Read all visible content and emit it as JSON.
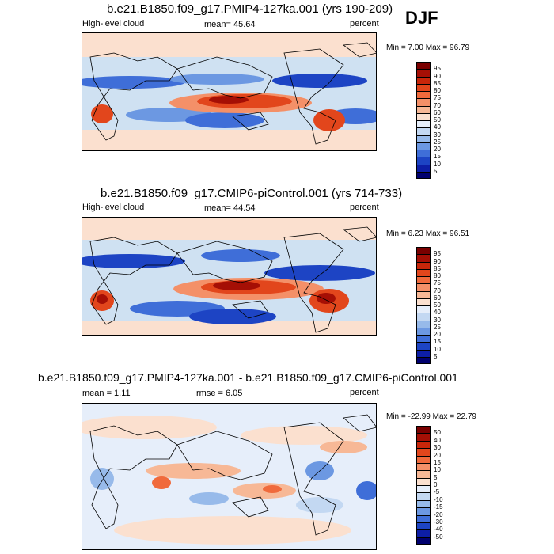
{
  "season": "DJF",
  "panels": [
    {
      "title": "b.e21.B1850.f09_g17.PMIP4-127ka.001 (yrs 190-209)",
      "left_label": "High-level cloud",
      "center_label": "mean=  45.64",
      "right_label": "percent",
      "minmax": "Min =   7.00 Max =  96.79"
    },
    {
      "title": "b.e21.B1850.f09_g17.CMIP6-piControl.001 (yrs 714-733)",
      "left_label": "High-level cloud",
      "center_label": "mean=  44.54",
      "right_label": "percent",
      "minmax": "Min =   6.23 Max =  96.51"
    },
    {
      "title": "b.e21.B1850.f09_g17.PMIP4-127ka.001 - b.e21.B1850.f09_g17.CMIP6-piControl.001",
      "left_label": "mean =   1.11",
      "center_label": "rmse =   6.05",
      "right_label": "percent",
      "minmax": "Min = -22.99 Max =  22.79"
    }
  ],
  "chart_data": [
    {
      "type": "heatmap",
      "title": "b.e21.B1850.f09_g17.PMIP4-127ka.001 (yrs 190-209)",
      "variable": "High-level cloud",
      "units": "percent",
      "mean": 45.64,
      "min": 7.0,
      "max": 96.79,
      "colorbar_levels": [
        5,
        10,
        15,
        20,
        25,
        30,
        40,
        50,
        60,
        70,
        75,
        80,
        85,
        90,
        95
      ]
    },
    {
      "type": "heatmap",
      "title": "b.e21.B1850.f09_g17.CMIP6-piControl.001 (yrs 714-733)",
      "variable": "High-level cloud",
      "units": "percent",
      "mean": 44.54,
      "min": 6.23,
      "max": 96.51,
      "colorbar_levels": [
        5,
        10,
        15,
        20,
        25,
        30,
        40,
        50,
        60,
        70,
        75,
        80,
        85,
        90,
        95
      ]
    },
    {
      "type": "heatmap",
      "title": "b.e21.B1850.f09_g17.PMIP4-127ka.001 - b.e21.B1850.f09_g17.CMIP6-piControl.001",
      "units": "percent",
      "mean": 1.11,
      "rmse": 6.05,
      "min": -22.99,
      "max": 22.79,
      "colorbar_levels": [
        -50,
        -40,
        -30,
        -20,
        -15,
        -10,
        -5,
        0,
        5,
        10,
        15,
        20,
        30,
        40,
        50
      ]
    }
  ],
  "colorbars": {
    "abs": {
      "labels": [
        "95",
        "90",
        "85",
        "80",
        "75",
        "70",
        "60",
        "50",
        "40",
        "30",
        "25",
        "20",
        "15",
        "10",
        "5"
      ],
      "colors": [
        "#7a0000",
        "#a50f05",
        "#c8260a",
        "#e2461c",
        "#f06a3c",
        "#f49068",
        "#f7b896",
        "#fbe0cf",
        "#e6eefa",
        "#c3d8f2",
        "#97baea",
        "#6c98e2",
        "#3f6ed8",
        "#1d44c4",
        "#0d1ea6",
        "#00006e"
      ]
    },
    "diff": {
      "labels": [
        "50",
        "40",
        "30",
        "20",
        "15",
        "10",
        "5",
        "0",
        "-5",
        "-10",
        "-15",
        "-20",
        "-30",
        "-40",
        "-50"
      ],
      "colors": [
        "#7a0000",
        "#a50f05",
        "#c8260a",
        "#e2461c",
        "#f06a3c",
        "#f49068",
        "#f7b896",
        "#fbe0cf",
        "#e6eefa",
        "#c3d8f2",
        "#97baea",
        "#6c98e2",
        "#3f6ed8",
        "#1d44c4",
        "#0d1ea6",
        "#00006e"
      ]
    }
  }
}
